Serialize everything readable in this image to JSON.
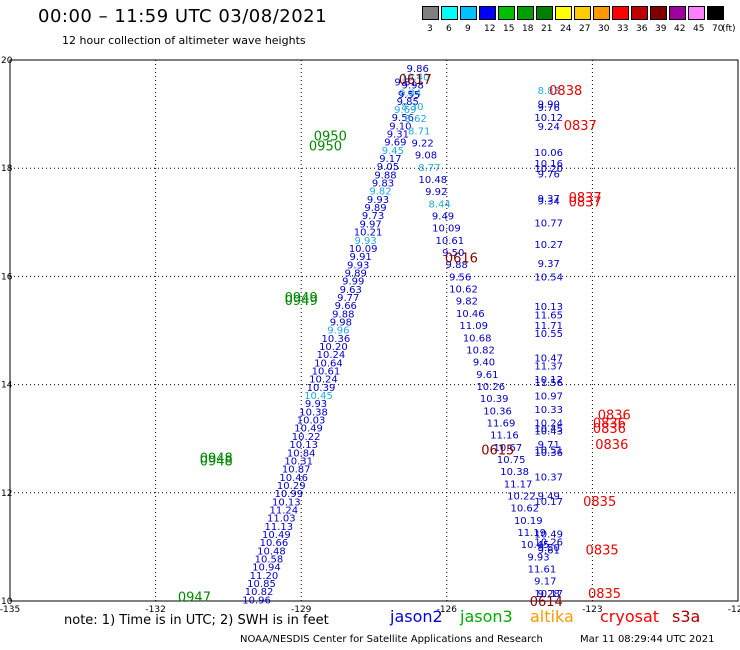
{
  "header": {
    "title": "00:00 – 11:59 UTC 03/08/2021",
    "subtitle": "12 hour collection of altimeter wave heights"
  },
  "colorbar": {
    "unit": "(ft)",
    "labels": [
      "3",
      "6",
      "9",
      "12",
      "15",
      "18",
      "21",
      "24",
      "27",
      "30",
      "33",
      "36",
      "39",
      "42",
      "45",
      "70"
    ],
    "colors": [
      "#808080",
      "#00ffff",
      "#00c0ff",
      "#0000ff",
      "#00c000",
      "#00a000",
      "#008000",
      "#ffff00",
      "#ffcc00",
      "#ff9900",
      "#ff0000",
      "#c00000",
      "#800000",
      "#a000a0",
      "#ff80ff",
      "#000000"
    ]
  },
  "footer": {
    "note": "note:  1) Time is in UTC;  2) SWH is in feet",
    "credit": "NOAA/NESDIS Center for Satellite Applications and Research",
    "timestamp": "Mar 11 08:29:44 UTC 2021"
  },
  "legend": [
    {
      "name": "jason2",
      "color": "#0000dd"
    },
    {
      "name": "jason3",
      "color": "#00aa00"
    },
    {
      "name": "altika",
      "color": "#ff9900"
    },
    {
      "name": "cryosat",
      "color": "#ff0000"
    },
    {
      "name": "s3a",
      "color": "#aa0000"
    }
  ],
  "chart_data": {
    "type": "scatter",
    "title": "",
    "xlabel": "",
    "ylabel": "",
    "xlim": [
      -135,
      -120
    ],
    "ylim": [
      10,
      20
    ],
    "xticks": [
      "-135",
      "-132",
      "-129",
      "-126",
      "-123",
      "-120"
    ],
    "yticks": [
      "10",
      "12",
      "14",
      "16",
      "18",
      "20"
    ],
    "grid": true,
    "colors": {
      "blue": "#0000cc",
      "cyan": "#22aadd",
      "green": "#008800",
      "red": "#ee0000",
      "darkred": "#880000"
    },
    "tracks": [
      {
        "name": "track-1",
        "start": [
          -129.92,
          10.03
        ],
        "end": [
          -126.6,
          19.85
        ],
        "values": [
          "10.96",
          "10.82",
          "10.85",
          "11.20",
          "10.94",
          "10.58",
          "10.48",
          "10.66",
          "10.49",
          "11.13",
          "11.03",
          "11.24",
          "10.13",
          "10.99",
          "10.29",
          "10.46",
          "10.87",
          "10.31",
          "10.84",
          "10.13",
          "10.22",
          "10.49",
          "10.03",
          "10.38",
          "9.93",
          "10.45",
          "10.39",
          "10.24",
          "10.61",
          "10.64",
          "10.24",
          "10.20",
          "10.36",
          "9.96",
          "9.98",
          "9.88",
          "9.66",
          "9.77",
          "9.63",
          "9.99",
          "9.89",
          "9.93",
          "9.91",
          "10.09",
          "9.93",
          "10.21",
          "9.97",
          "9.73",
          "9.89",
          "9.93",
          "9.82",
          "9.83",
          "9.88",
          "9.05",
          "9.17",
          "9.45",
          "9.69",
          "9.31",
          "9.10",
          "9.56",
          "9.69",
          "9.85",
          "9.84",
          "9.98",
          "10.40",
          "9.86"
        ],
        "colors": "mixed",
        "cyan_indices": [
          25,
          33,
          60,
          62,
          64,
          55,
          50,
          44
        ]
      },
      {
        "name": "track-2",
        "start": [
          -126.85,
          19.6
        ],
        "end": [
          -123.9,
          10.15
        ],
        "values": [
          "9.81",
          "9.55",
          "8.30",
          "8.62",
          "8.71",
          "9.22",
          "9.08",
          "8.77",
          "10.48",
          "9.92",
          "8.44",
          "9.49",
          "10.09",
          "10.61",
          "9.50",
          "9.88",
          "9.56",
          "10.62",
          "9.82",
          "10.46",
          "11.09",
          "10.68",
          "10.82",
          "9.40",
          "9.61",
          "10.26",
          "10.39",
          "10.36",
          "11.69",
          "11.16",
          "10.67",
          "10.75",
          "10.38",
          "11.17",
          "10.22",
          "10.62",
          "10.19",
          "11.19",
          "10.45",
          "9.93",
          "11.61",
          "9.17",
          "10.17"
        ],
        "cyan_indices": [
          2,
          3,
          4,
          7,
          10
        ]
      },
      {
        "name": "track-3",
        "points": [
          [
            "8.83",
            19.45
          ],
          [
            "9.90",
            19.2
          ],
          [
            "9.76",
            19.13
          ],
          [
            "10.12",
            18.95
          ],
          [
            "9.24",
            18.78
          ],
          [
            "10.06",
            18.3
          ],
          [
            "10.16",
            18.1
          ],
          [
            "10.20",
            18.0
          ],
          [
            "9.76",
            17.9
          ],
          [
            "9.37",
            17.45
          ],
          [
            "9.34",
            17.4
          ],
          [
            "10.77",
            17.0
          ],
          [
            "10.27",
            16.6
          ],
          [
            "9.37",
            16.25
          ],
          [
            "10.54",
            16.0
          ],
          [
            "10.13",
            15.45
          ],
          [
            "11.65",
            15.3
          ],
          [
            "11.71",
            15.1
          ],
          [
            "10.55",
            14.95
          ],
          [
            "10.47",
            14.5
          ],
          [
            "11.37",
            14.35
          ],
          [
            "10.12",
            14.1
          ],
          [
            "11.56",
            14.05
          ],
          [
            "10.97",
            13.8
          ],
          [
            "10.33",
            13.55
          ],
          [
            "10.24",
            13.3
          ],
          [
            "10.45",
            13.2
          ],
          [
            "10.43",
            13.15
          ],
          [
            "9.71",
            12.9
          ],
          [
            "10.51",
            12.8
          ],
          [
            "10.36",
            12.75
          ],
          [
            "10.37",
            12.3
          ],
          [
            "9.49",
            11.95
          ],
          [
            "10.17",
            11.85
          ],
          [
            "10.49",
            11.25
          ],
          [
            "10.26",
            11.1
          ],
          [
            "9.50",
            11.0
          ],
          [
            "9.61",
            10.95
          ],
          [
            "9.28",
            10.15
          ]
        ],
        "x": -123.9
      }
    ],
    "time_labels": [
      {
        "text": "0617",
        "x": -126.65,
        "y": 19.65,
        "color": "darkred"
      },
      {
        "text": "0838",
        "x": -123.55,
        "y": 19.45,
        "color": "red"
      },
      {
        "text": "0837",
        "x": -123.25,
        "y": 18.8,
        "color": "red"
      },
      {
        "text": "0950",
        "x": -128.4,
        "y": 18.6,
        "color": "green"
      },
      {
        "text": "0950",
        "x": -128.5,
        "y": 18.42,
        "color": "green"
      },
      {
        "text": "0837",
        "x": -123.15,
        "y": 17.47,
        "color": "red"
      },
      {
        "text": "0837",
        "x": -123.15,
        "y": 17.38,
        "color": "red"
      },
      {
        "text": "0616",
        "x": -125.7,
        "y": 16.35,
        "color": "darkred"
      },
      {
        "text": "0949",
        "x": -129.0,
        "y": 15.62,
        "color": "green"
      },
      {
        "text": "0949",
        "x": -129.0,
        "y": 15.56,
        "color": "green"
      },
      {
        "text": "0836",
        "x": -122.55,
        "y": 13.45,
        "color": "red"
      },
      {
        "text": "0836",
        "x": -122.65,
        "y": 13.3,
        "color": "red"
      },
      {
        "text": "0836",
        "x": -122.65,
        "y": 13.2,
        "color": "red"
      },
      {
        "text": "0836",
        "x": -122.6,
        "y": 12.9,
        "color": "red"
      },
      {
        "text": "0615",
        "x": -124.95,
        "y": 12.8,
        "color": "darkred"
      },
      {
        "text": "0948",
        "x": -130.75,
        "y": 12.65,
        "color": "green"
      },
      {
        "text": "0948",
        "x": -130.75,
        "y": 12.6,
        "color": "green"
      },
      {
        "text": "0835",
        "x": -122.85,
        "y": 11.85,
        "color": "red"
      },
      {
        "text": "0835",
        "x": -122.8,
        "y": 10.95,
        "color": "red"
      },
      {
        "text": "0947",
        "x": -131.2,
        "y": 10.08,
        "color": "green"
      },
      {
        "text": "0614",
        "x": -123.95,
        "y": 10.0,
        "color": "darkred"
      },
      {
        "text": "0835",
        "x": -122.75,
        "y": 10.15,
        "color": "red"
      }
    ]
  }
}
